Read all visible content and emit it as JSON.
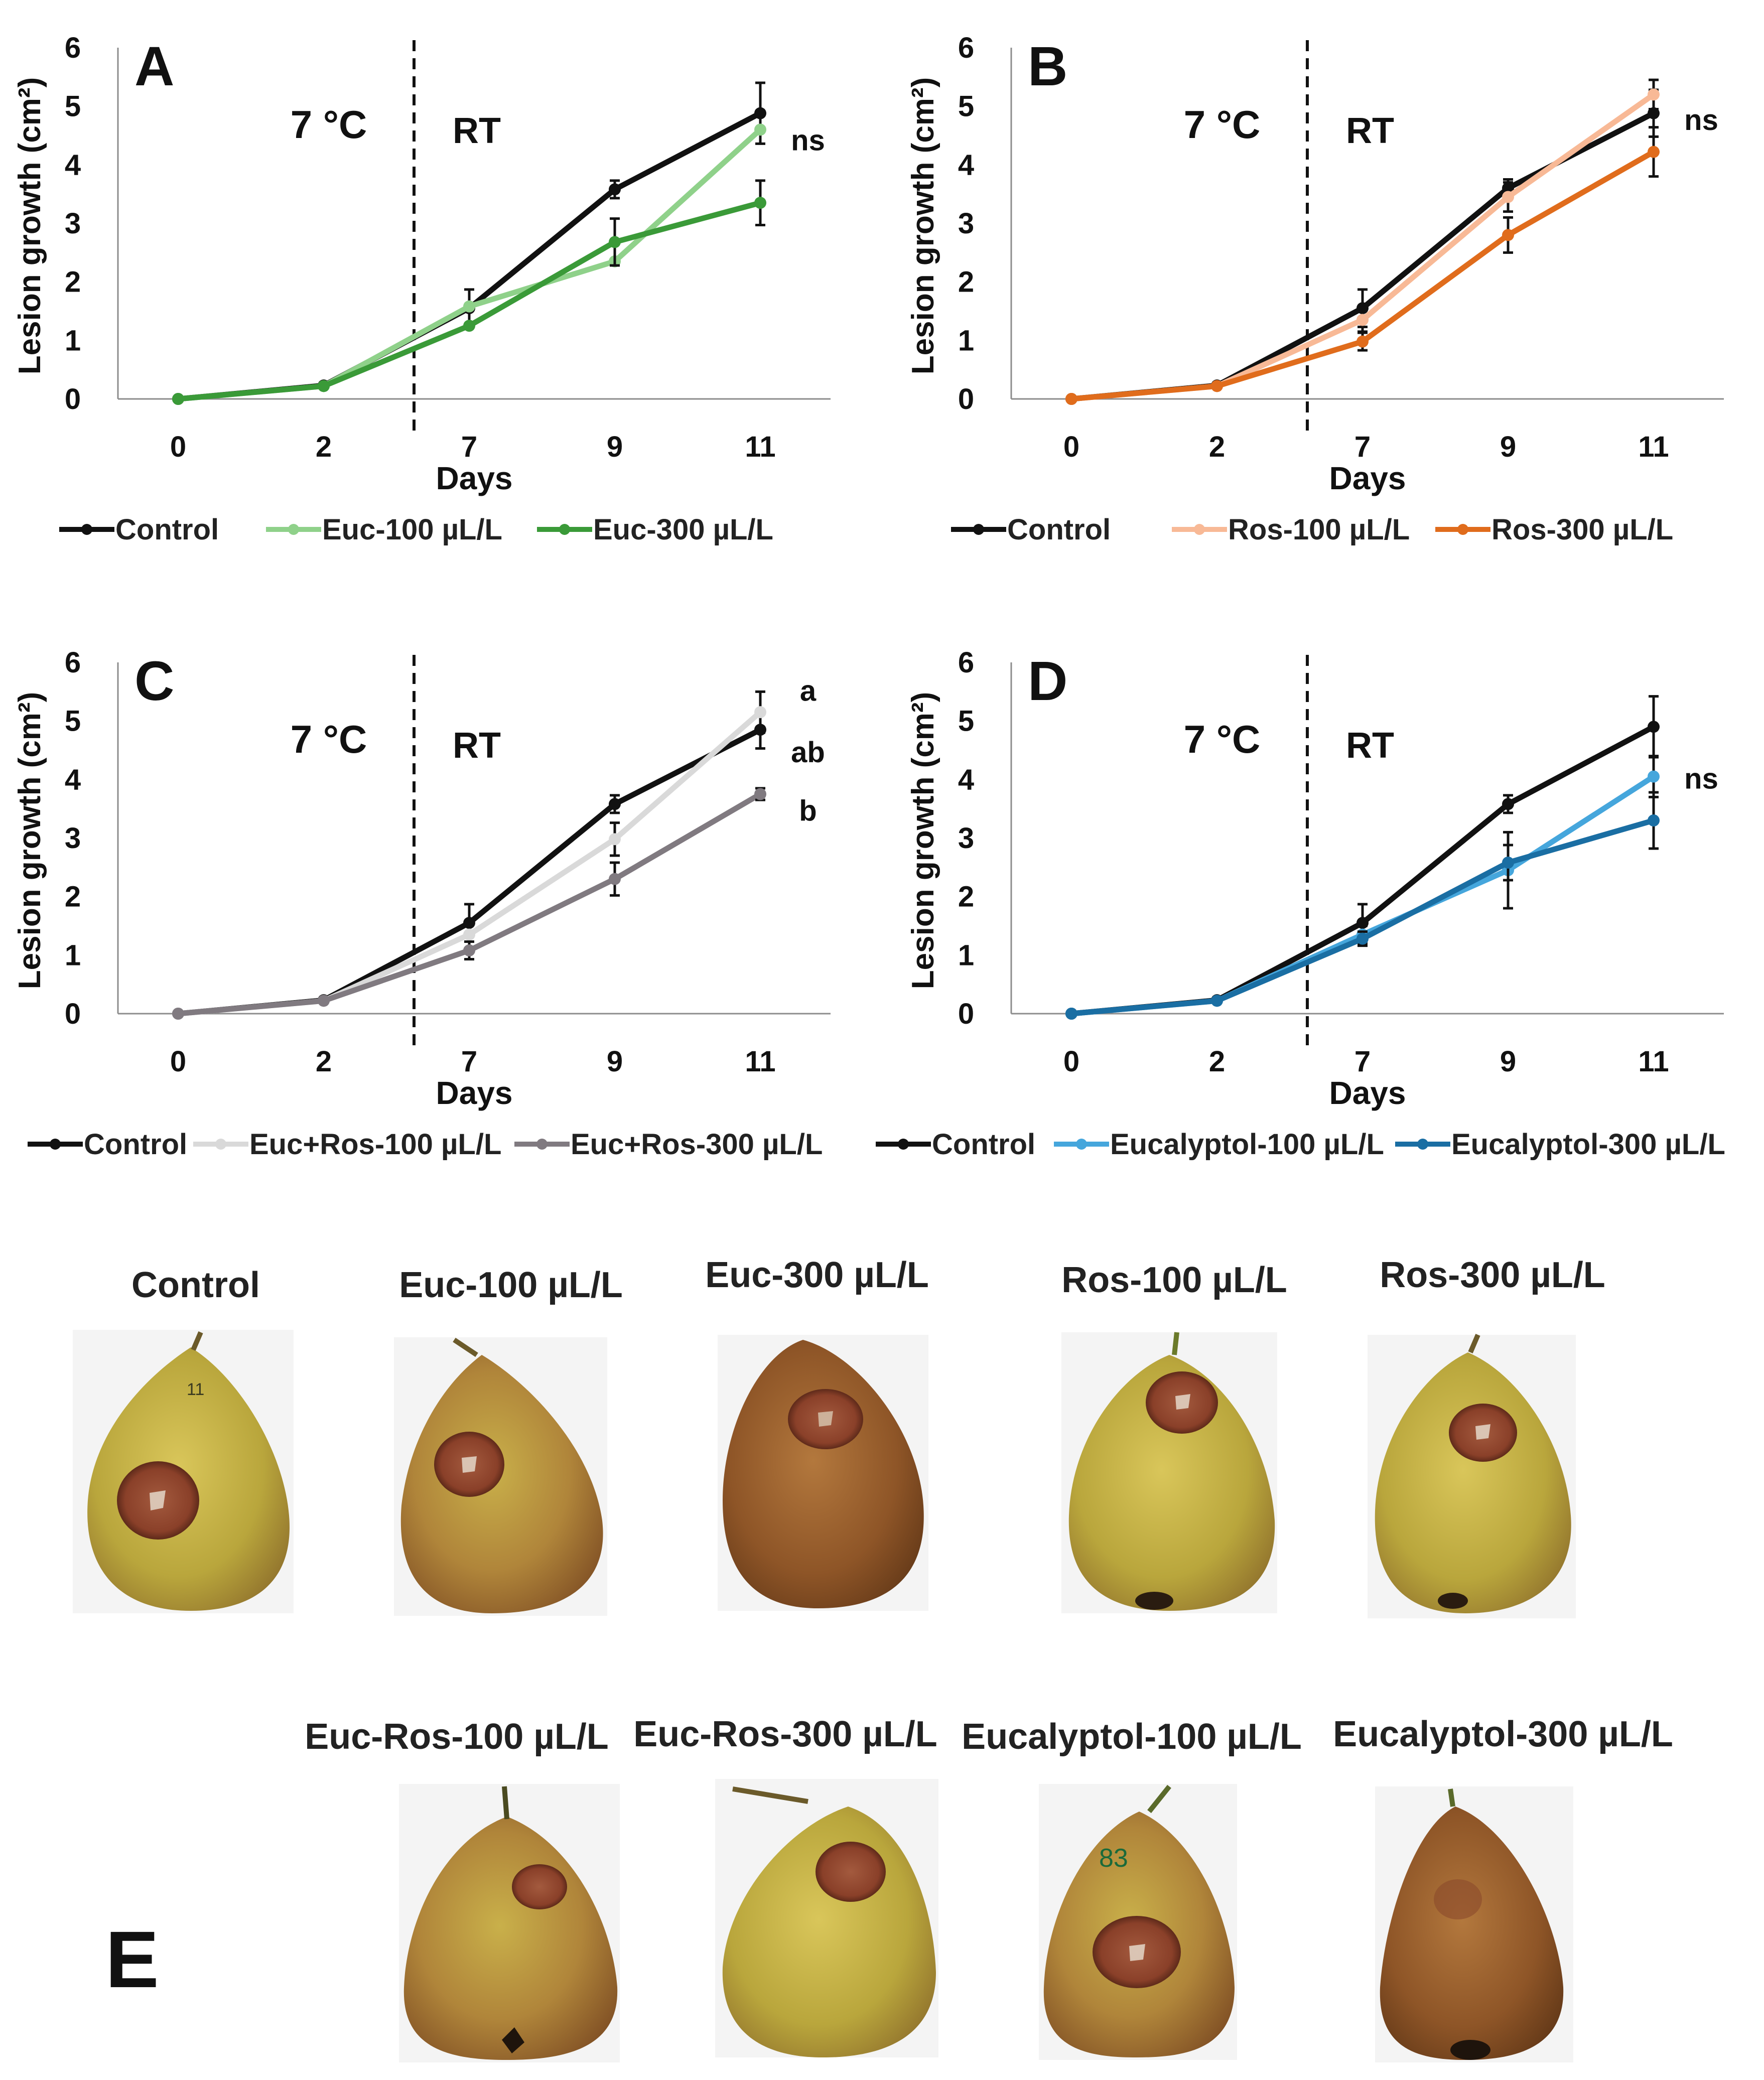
{
  "chart_data": [
    {
      "panel": "A",
      "type": "line",
      "xlabel": "Days",
      "ylabel": "Lesion growth (cm²)",
      "categories": [
        "0",
        "2",
        "7",
        "9",
        "11"
      ],
      "ylim": [
        0,
        6
      ],
      "yticks": [
        "0",
        "1",
        "2",
        "3",
        "4",
        "5",
        "6"
      ],
      "phase_labels": {
        "before": "7 °C",
        "after": "RT"
      },
      "stat_labels": [
        {
          "text": "ns",
          "y": 4.4
        }
      ],
      "legend": [
        "Control",
        "Euc-100 µL/L",
        "Euc-300 µL/L"
      ],
      "series": [
        {
          "name": "Control",
          "color": "#111111",
          "values": [
            0,
            0.23,
            1.55,
            3.58,
            4.88
          ],
          "errors": [
            0,
            0,
            0.32,
            0.15,
            0.52
          ]
        },
        {
          "name": "Euc-100 µL/L",
          "color": "#8fd18a",
          "values": [
            0,
            0.22,
            1.58,
            2.35,
            4.6
          ],
          "errors": [
            0,
            0,
            0,
            0,
            0
          ]
        },
        {
          "name": "Euc-300 µL/L",
          "color": "#3a9a38",
          "values": [
            0,
            0.22,
            1.25,
            2.68,
            3.35
          ],
          "errors": [
            0,
            0,
            0,
            0.4,
            0.38
          ]
        }
      ]
    },
    {
      "panel": "B",
      "type": "line",
      "xlabel": "Days",
      "ylabel": "Lesion growth (cm²)",
      "categories": [
        "0",
        "2",
        "7",
        "9",
        "11"
      ],
      "ylim": [
        0,
        6
      ],
      "yticks": [
        "0",
        "1",
        "2",
        "3",
        "4",
        "5",
        "6"
      ],
      "phase_labels": {
        "before": "7 °C",
        "after": "RT"
      },
      "stat_labels": [
        {
          "text": "ns",
          "y": 4.75
        }
      ],
      "legend": [
        "Control",
        "Ros-100 µL/L",
        "Ros-300 µL/L"
      ],
      "series": [
        {
          "name": "Control",
          "color": "#111111",
          "values": [
            0,
            0.23,
            1.55,
            3.6,
            4.88
          ],
          "errors": [
            0,
            0,
            0.32,
            0.15,
            0.4
          ]
        },
        {
          "name": "Ros-100 µL/L",
          "color": "#f8b996",
          "values": [
            0,
            0.22,
            1.35,
            3.45,
            5.2
          ],
          "errors": [
            0,
            0,
            0.2,
            0.25,
            0.25
          ]
        },
        {
          "name": "Ros-300 µL/L",
          "color": "#e06c1c",
          "values": [
            0,
            0.22,
            0.98,
            2.8,
            4.22
          ],
          "errors": [
            0,
            0,
            0.15,
            0.3,
            0.42
          ]
        }
      ]
    },
    {
      "panel": "C",
      "type": "line",
      "xlabel": "Days",
      "ylabel": "Lesion growth (cm²)",
      "categories": [
        "0",
        "2",
        "7",
        "9",
        "11"
      ],
      "ylim": [
        0,
        6
      ],
      "yticks": [
        "0",
        "1",
        "2",
        "3",
        "4",
        "5",
        "6"
      ],
      "phase_labels": {
        "before": "7 °C",
        "after": "RT"
      },
      "stat_labels": [
        {
          "text": "a",
          "y": 5.5
        },
        {
          "text": "ab",
          "y": 4.45
        },
        {
          "text": "b",
          "y": 3.45
        }
      ],
      "legend": [
        "Control",
        "Euc+Ros-100 µL/L",
        "Euc+Ros-300 µL/L"
      ],
      "series": [
        {
          "name": "Control",
          "color": "#111111",
          "values": [
            0,
            0.23,
            1.55,
            3.58,
            4.85
          ],
          "errors": [
            0,
            0,
            0.32,
            0.15,
            0.32
          ]
        },
        {
          "name": "Euc+Ros-100 µL/L",
          "color": "#d9d9d9",
          "values": [
            0,
            0.22,
            1.35,
            2.98,
            5.15
          ],
          "errors": [
            0,
            0,
            0,
            0.28,
            0.35
          ]
        },
        {
          "name": "Euc+Ros-300 µL/L",
          "color": "#807a80",
          "values": [
            0,
            0.22,
            1.08,
            2.3,
            3.75
          ],
          "errors": [
            0,
            0,
            0.15,
            0.28,
            0.1
          ]
        }
      ]
    },
    {
      "panel": "D",
      "type": "line",
      "xlabel": "Days",
      "ylabel": "Lesion growth (cm²)",
      "categories": [
        "0",
        "2",
        "7",
        "9",
        "11"
      ],
      "ylim": [
        0,
        6
      ],
      "yticks": [
        "0",
        "1",
        "2",
        "3",
        "4",
        "5",
        "6"
      ],
      "phase_labels": {
        "before": "7 °C",
        "after": "RT"
      },
      "stat_labels": [
        {
          "text": "ns",
          "y": 4.0
        }
      ],
      "legend": [
        "Control",
        "Eucalyptol-100 µL/L",
        "Eucalyptol-300 µL/L"
      ],
      "series": [
        {
          "name": "Control",
          "color": "#111111",
          "values": [
            0,
            0.23,
            1.55,
            3.58,
            4.9
          ],
          "errors": [
            0,
            0,
            0.32,
            0.15,
            0.52
          ]
        },
        {
          "name": "Eucalyptol-100 µL/L",
          "color": "#45a6dc",
          "values": [
            0,
            0.22,
            1.35,
            2.45,
            4.05
          ],
          "errors": [
            0,
            0,
            0.15,
            0.65,
            0.35
          ]
        },
        {
          "name": "Eucalyptol-300 µL/L",
          "color": "#1a6ea3",
          "values": [
            0,
            0.22,
            1.28,
            2.58,
            3.3
          ],
          "errors": [
            0,
            0,
            0.12,
            0.3,
            0.48
          ]
        }
      ]
    }
  ],
  "panel_e": {
    "label": "E",
    "row1": [
      "Control",
      "Euc-100 µL/L",
      "Euc-300 µL/L",
      "Ros-100 µL/L",
      "Ros-300 µL/L"
    ],
    "row2": [
      "Euc-Ros-100 µL/L",
      "Euc-Ros-300 µL/L",
      "Eucalyptol-100 µL/L",
      "Eucalyptol-300 µL/L"
    ],
    "annotations": {
      "fruit_1": "11",
      "fruit_8": "83"
    }
  }
}
